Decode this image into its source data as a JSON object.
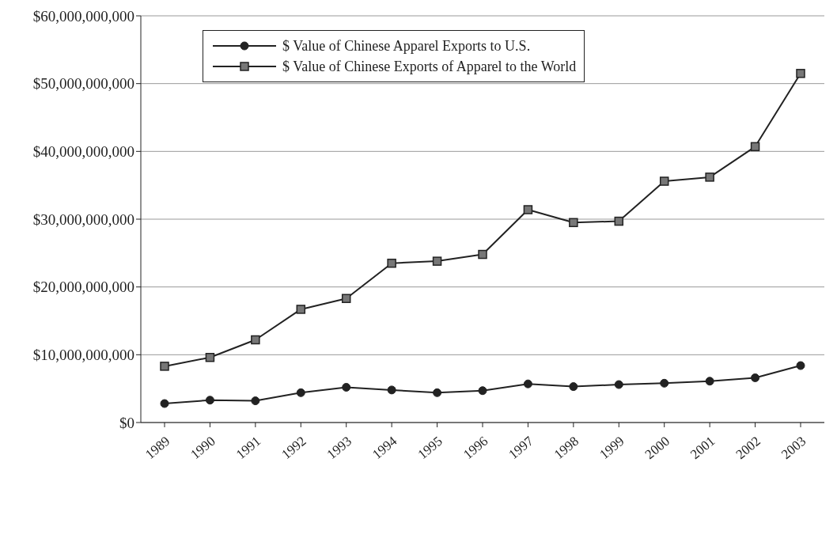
{
  "chart_data": {
    "type": "line",
    "categories": [
      "1989",
      "1990",
      "1991",
      "1992",
      "1993",
      "1994",
      "1995",
      "1996",
      "1997",
      "1998",
      "1999",
      "2000",
      "2001",
      "2002",
      "2003"
    ],
    "series": [
      {
        "name": "$ Value of Chinese Apparel Exports to U.S.",
        "color": "#222222",
        "marker": "circle",
        "values": [
          2800000000,
          3300000000,
          3200000000,
          4400000000,
          5200000000,
          4800000000,
          4400000000,
          4700000000,
          5700000000,
          5300000000,
          5600000000,
          5800000000,
          6100000000,
          6600000000,
          8400000000
        ]
      },
      {
        "name": "$ Value of Chinese Exports of Apparel to the World",
        "color": "#222222",
        "marker": "square",
        "values": [
          8300000000,
          9600000000,
          12200000000,
          16700000000,
          18300000000,
          23500000000,
          23800000000,
          24800000000,
          31400000000,
          29500000000,
          29700000000,
          35600000000,
          36200000000,
          40700000000,
          51500000000
        ]
      }
    ],
    "ylim": [
      0,
      60000000000
    ],
    "yticks": [
      {
        "value": 0,
        "label": "$0"
      },
      {
        "value": 10000000000,
        "label": "$10,000,000,000"
      },
      {
        "value": 20000000000,
        "label": "$20,000,000,000"
      },
      {
        "value": 30000000000,
        "label": "$30,000,000,000"
      },
      {
        "value": 40000000000,
        "label": "$40,000,000,000"
      },
      {
        "value": 50000000000,
        "label": "$50,000,000,000"
      },
      {
        "value": 60000000000,
        "label": "$60,000,000,000"
      }
    ],
    "grid": "y",
    "legend": "top left",
    "line_style": "solid"
  }
}
